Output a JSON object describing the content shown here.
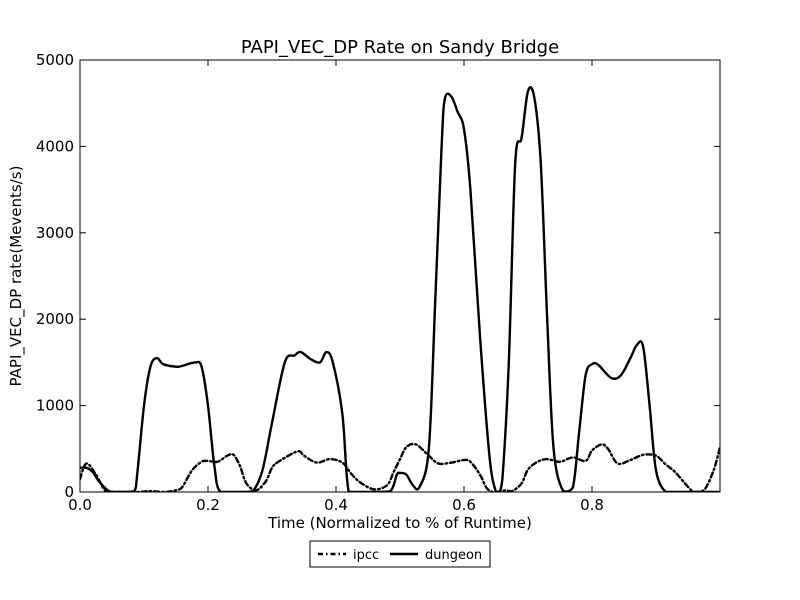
{
  "chart_data": {
    "type": "line",
    "title": "PAPI_VEC_DP Rate on Sandy Bridge",
    "xlabel": "Time (Normalized to % of Runtime)",
    "ylabel": "PAPI_VEC_DP rate(Mevents/s)",
    "xlim": [
      0,
      1
    ],
    "ylim": [
      0,
      5000
    ],
    "x_ticks": [
      0.0,
      0.2,
      0.4,
      0.6,
      0.8
    ],
    "x_tick_labels": [
      "0.0",
      "0.2",
      "0.4",
      "0.6",
      "0.8"
    ],
    "y_ticks": [
      0,
      1000,
      2000,
      3000,
      4000,
      5000
    ],
    "y_tick_labels": [
      "0",
      "1000",
      "2000",
      "3000",
      "4000",
      "5000"
    ],
    "grid": false,
    "legend_position": "bottom-center",
    "series": [
      {
        "name": "ipcc",
        "style": "dash-dot",
        "color": "#000000",
        "x": [
          0.0,
          0.01,
          0.025,
          0.04,
          0.055,
          0.07,
          0.09,
          0.11,
          0.13,
          0.15,
          0.16,
          0.175,
          0.19,
          0.2,
          0.215,
          0.23,
          0.24,
          0.25,
          0.26,
          0.275,
          0.29,
          0.3,
          0.31,
          0.34,
          0.35,
          0.37,
          0.39,
          0.41,
          0.425,
          0.44,
          0.46,
          0.48,
          0.49,
          0.5,
          0.51,
          0.525,
          0.545,
          0.56,
          0.58,
          0.6,
          0.61,
          0.625,
          0.635,
          0.645,
          0.655,
          0.665,
          0.675,
          0.69,
          0.7,
          0.715,
          0.73,
          0.75,
          0.77,
          0.79,
          0.8,
          0.815,
          0.825,
          0.84,
          0.86,
          0.88,
          0.9,
          0.915,
          0.93,
          0.95,
          0.96,
          0.975,
          0.99,
          1.0
        ],
        "values": [
          150,
          330,
          200,
          10,
          0,
          0,
          0,
          10,
          0,
          20,
          60,
          250,
          350,
          360,
          350,
          420,
          430,
          300,
          100,
          20,
          120,
          280,
          350,
          470,
          420,
          340,
          380,
          340,
          200,
          100,
          30,
          80,
          230,
          380,
          520,
          550,
          420,
          330,
          340,
          370,
          350,
          200,
          50,
          0,
          0,
          20,
          10,
          100,
          260,
          350,
          380,
          350,
          400,
          360,
          480,
          550,
          500,
          330,
          370,
          430,
          420,
          320,
          230,
          60,
          0,
          20,
          250,
          520
        ]
      },
      {
        "name": "dungeon",
        "style": "solid",
        "color": "#000000",
        "x": [
          0.0,
          0.01,
          0.02,
          0.03,
          0.045,
          0.055,
          0.07,
          0.085,
          0.09,
          0.1,
          0.11,
          0.12,
          0.13,
          0.15,
          0.16,
          0.18,
          0.19,
          0.2,
          0.21,
          0.22,
          0.255,
          0.27,
          0.285,
          0.3,
          0.32,
          0.335,
          0.345,
          0.36,
          0.375,
          0.385,
          0.395,
          0.41,
          0.42,
          0.44,
          0.46,
          0.485,
          0.495,
          0.5,
          0.51,
          0.52,
          0.53,
          0.545,
          0.555,
          0.565,
          0.57,
          0.58,
          0.59,
          0.6,
          0.61,
          0.625,
          0.64,
          0.65,
          0.655,
          0.66,
          0.67,
          0.68,
          0.69,
          0.7,
          0.71,
          0.72,
          0.73,
          0.74,
          0.755,
          0.77,
          0.78,
          0.79,
          0.8,
          0.81,
          0.83,
          0.845,
          0.86,
          0.87,
          0.88,
          0.89,
          0.9,
          0.915,
          0.93,
          0.96,
          1.0
        ],
        "values": [
          280,
          280,
          230,
          120,
          10,
          0,
          0,
          10,
          250,
          1000,
          1450,
          1550,
          1480,
          1450,
          1460,
          1500,
          1450,
          1000,
          300,
          0,
          0,
          10,
          250,
          800,
          1500,
          1580,
          1620,
          1540,
          1500,
          1620,
          1500,
          900,
          0,
          0,
          0,
          10,
          200,
          220,
          200,
          80,
          50,
          500,
          2200,
          4000,
          4550,
          4580,
          4400,
          4200,
          3500,
          1800,
          400,
          0,
          0,
          150,
          1500,
          3800,
          4100,
          4640,
          4560,
          3800,
          2000,
          500,
          10,
          50,
          700,
          1350,
          1480,
          1470,
          1320,
          1350,
          1550,
          1700,
          1680,
          1000,
          250,
          0,
          0,
          0,
          0
        ]
      }
    ]
  }
}
